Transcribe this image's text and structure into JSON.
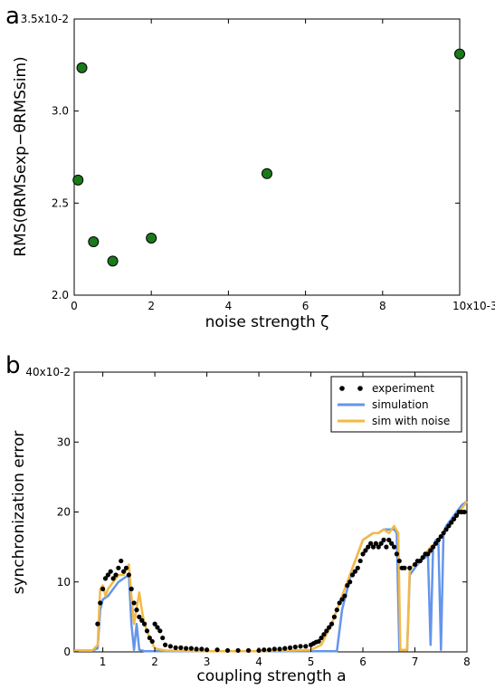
{
  "chart_data": [
    {
      "panel": "a",
      "type": "scatter",
      "title": "",
      "xlabel": "noise strength ζ",
      "ylabel": "RMS(θRMSexp−θRMSsim)",
      "xlim": [
        0,
        0.01
      ],
      "ylim": [
        0.02,
        0.035
      ],
      "x_ticks": [
        0,
        0.002,
        0.004,
        0.006,
        0.008,
        0.01
      ],
      "x_tick_labels": [
        "0",
        "2",
        "4",
        "6",
        "8",
        "10x10-3"
      ],
      "y_ticks": [
        0.02,
        0.025,
        0.03,
        0.035
      ],
      "y_tick_labels": [
        "2.0",
        "2.5",
        "3.0",
        "3.5x10-2"
      ],
      "grid": false,
      "marker_color": "#1a7a1a",
      "points": [
        {
          "x": 0.0001,
          "y": 0.02625
        },
        {
          "x": 0.0002,
          "y": 0.03235
        },
        {
          "x": 0.0005,
          "y": 0.0229
        },
        {
          "x": 0.001,
          "y": 0.02185
        },
        {
          "x": 0.002,
          "y": 0.0231
        },
        {
          "x": 0.005,
          "y": 0.0266
        },
        {
          "x": 0.01,
          "y": 0.0331
        }
      ]
    },
    {
      "panel": "b",
      "type": "line",
      "title": "",
      "xlabel": "coupling strength a",
      "ylabel": "synchronization error",
      "xlim": [
        0.45,
        8
      ],
      "ylim": [
        0,
        0.4
      ],
      "x_ticks": [
        1,
        2,
        3,
        4,
        5,
        6,
        7,
        8
      ],
      "x_tick_labels": [
        "1",
        "2",
        "3",
        "4",
        "5",
        "6",
        "7",
        "8"
      ],
      "y_ticks": [
        0,
        0.1,
        0.2,
        0.3,
        0.4
      ],
      "y_tick_labels": [
        "0",
        "10",
        "20",
        "30",
        "40x10-2"
      ],
      "grid": false,
      "legend_position": "top-right",
      "legend": [
        {
          "label": "experiment",
          "style": "dots",
          "color": "#000000"
        },
        {
          "label": "simulation",
          "style": "line",
          "color": "#6495ed"
        },
        {
          "label": "sim with noise",
          "style": "line",
          "color": "#f5b942"
        }
      ],
      "series": [
        {
          "key": "experiment",
          "type": "scatter",
          "color": "#000000",
          "points": [
            [
              0.9,
              0.04
            ],
            [
              0.95,
              0.07
            ],
            [
              1.0,
              0.09
            ],
            [
              1.05,
              0.105
            ],
            [
              1.1,
              0.11
            ],
            [
              1.15,
              0.115
            ],
            [
              1.2,
              0.105
            ],
            [
              1.25,
              0.11
            ],
            [
              1.3,
              0.12
            ],
            [
              1.35,
              0.13
            ],
            [
              1.4,
              0.115
            ],
            [
              1.45,
              0.12
            ],
            [
              1.5,
              0.11
            ],
            [
              1.55,
              0.09
            ],
            [
              1.6,
              0.07
            ],
            [
              1.65,
              0.06
            ],
            [
              1.7,
              0.05
            ],
            [
              1.75,
              0.045
            ],
            [
              1.8,
              0.04
            ],
            [
              1.85,
              0.03
            ],
            [
              1.9,
              0.02
            ],
            [
              1.95,
              0.015
            ],
            [
              2.0,
              0.04
            ],
            [
              2.05,
              0.035
            ],
            [
              2.1,
              0.03
            ],
            [
              2.15,
              0.02
            ],
            [
              2.2,
              0.01
            ],
            [
              2.3,
              0.008
            ],
            [
              2.4,
              0.006
            ],
            [
              2.5,
              0.006
            ],
            [
              2.6,
              0.005
            ],
            [
              2.7,
              0.005
            ],
            [
              2.8,
              0.004
            ],
            [
              2.9,
              0.004
            ],
            [
              3.0,
              0.003
            ],
            [
              3.2,
              0.003
            ],
            [
              3.4,
              0.002
            ],
            [
              3.6,
              0.002
            ],
            [
              3.8,
              0.002
            ],
            [
              4.0,
              0.002
            ],
            [
              4.1,
              0.003
            ],
            [
              4.2,
              0.003
            ],
            [
              4.3,
              0.004
            ],
            [
              4.4,
              0.004
            ],
            [
              4.5,
              0.005
            ],
            [
              4.6,
              0.006
            ],
            [
              4.7,
              0.007
            ],
            [
              4.8,
              0.008
            ],
            [
              4.9,
              0.008
            ],
            [
              5.0,
              0.01
            ],
            [
              5.05,
              0.012
            ],
            [
              5.1,
              0.014
            ],
            [
              5.15,
              0.015
            ],
            [
              5.2,
              0.02
            ],
            [
              5.25,
              0.025
            ],
            [
              5.3,
              0.03
            ],
            [
              5.35,
              0.035
            ],
            [
              5.4,
              0.04
            ],
            [
              5.45,
              0.05
            ],
            [
              5.5,
              0.06
            ],
            [
              5.55,
              0.07
            ],
            [
              5.6,
              0.075
            ],
            [
              5.65,
              0.08
            ],
            [
              5.7,
              0.095
            ],
            [
              5.75,
              0.1
            ],
            [
              5.8,
              0.11
            ],
            [
              5.85,
              0.115
            ],
            [
              5.9,
              0.12
            ],
            [
              5.95,
              0.13
            ],
            [
              6.0,
              0.14
            ],
            [
              6.05,
              0.145
            ],
            [
              6.1,
              0.15
            ],
            [
              6.15,
              0.155
            ],
            [
              6.2,
              0.15
            ],
            [
              6.25,
              0.155
            ],
            [
              6.3,
              0.15
            ],
            [
              6.35,
              0.155
            ],
            [
              6.4,
              0.16
            ],
            [
              6.45,
              0.15
            ],
            [
              6.5,
              0.16
            ],
            [
              6.55,
              0.155
            ],
            [
              6.6,
              0.15
            ],
            [
              6.65,
              0.14
            ],
            [
              6.7,
              0.13
            ],
            [
              6.75,
              0.12
            ],
            [
              6.8,
              0.12
            ],
            [
              6.9,
              0.12
            ],
            [
              7.0,
              0.125
            ],
            [
              7.05,
              0.13
            ],
            [
              7.1,
              0.13
            ],
            [
              7.15,
              0.135
            ],
            [
              7.2,
              0.14
            ],
            [
              7.25,
              0.14
            ],
            [
              7.3,
              0.145
            ],
            [
              7.35,
              0.15
            ],
            [
              7.4,
              0.155
            ],
            [
              7.45,
              0.16
            ],
            [
              7.5,
              0.165
            ],
            [
              7.55,
              0.17
            ],
            [
              7.6,
              0.175
            ],
            [
              7.65,
              0.18
            ],
            [
              7.7,
              0.185
            ],
            [
              7.75,
              0.19
            ],
            [
              7.8,
              0.195
            ],
            [
              7.85,
              0.2
            ],
            [
              7.9,
              0.2
            ],
            [
              7.95,
              0.2
            ]
          ]
        },
        {
          "key": "simulation",
          "type": "line",
          "color": "#6495ed",
          "points": [
            [
              0.45,
              0.002
            ],
            [
              0.8,
              0.002
            ],
            [
              0.9,
              0.005
            ],
            [
              0.95,
              0.06
            ],
            [
              1.0,
              0.075
            ],
            [
              1.1,
              0.08
            ],
            [
              1.2,
              0.09
            ],
            [
              1.3,
              0.1
            ],
            [
              1.4,
              0.105
            ],
            [
              1.5,
              0.11
            ],
            [
              1.55,
              0.04
            ],
            [
              1.6,
              0.003
            ],
            [
              1.65,
              0.04
            ],
            [
              1.7,
              0.003
            ],
            [
              1.8,
              0.001
            ],
            [
              2.0,
              0.001
            ],
            [
              3.0,
              0.001
            ],
            [
              4.0,
              0.001
            ],
            [
              5.0,
              0.001
            ],
            [
              5.5,
              0.001
            ],
            [
              5.6,
              0.06
            ],
            [
              5.7,
              0.09
            ],
            [
              5.8,
              0.12
            ],
            [
              5.9,
              0.14
            ],
            [
              6.0,
              0.16
            ],
            [
              6.1,
              0.165
            ],
            [
              6.2,
              0.17
            ],
            [
              6.3,
              0.17
            ],
            [
              6.4,
              0.175
            ],
            [
              6.5,
              0.175
            ],
            [
              6.6,
              0.175
            ],
            [
              6.65,
              0.17
            ],
            [
              6.7,
              0.002
            ],
            [
              6.85,
              0.002
            ],
            [
              6.9,
              0.11
            ],
            [
              7.0,
              0.12
            ],
            [
              7.1,
              0.13
            ],
            [
              7.2,
              0.135
            ],
            [
              7.25,
              0.14
            ],
            [
              7.3,
              0.01
            ],
            [
              7.35,
              0.15
            ],
            [
              7.4,
              0.16
            ],
            [
              7.45,
              0.16
            ],
            [
              7.5,
              0.003
            ],
            [
              7.55,
              0.17
            ],
            [
              7.6,
              0.18
            ],
            [
              7.7,
              0.19
            ],
            [
              7.8,
              0.2
            ],
            [
              7.9,
              0.21
            ],
            [
              8.0,
              0.215
            ]
          ]
        },
        {
          "key": "sim-with-noise",
          "type": "line",
          "color": "#f5b942",
          "points": [
            [
              0.45,
              0.002
            ],
            [
              0.8,
              0.002
            ],
            [
              0.9,
              0.01
            ],
            [
              0.95,
              0.09
            ],
            [
              1.0,
              0.095
            ],
            [
              1.05,
              0.08
            ],
            [
              1.1,
              0.09
            ],
            [
              1.2,
              0.1
            ],
            [
              1.3,
              0.11
            ],
            [
              1.4,
              0.11
            ],
            [
              1.5,
              0.125
            ],
            [
              1.55,
              0.08
            ],
            [
              1.6,
              0.04
            ],
            [
              1.7,
              0.085
            ],
            [
              1.75,
              0.06
            ],
            [
              1.8,
              0.04
            ],
            [
              1.9,
              0.02
            ],
            [
              2.0,
              0.005
            ],
            [
              2.2,
              0.002
            ],
            [
              3.0,
              0.001
            ],
            [
              4.0,
              0.001
            ],
            [
              5.0,
              0.003
            ],
            [
              5.2,
              0.01
            ],
            [
              5.4,
              0.04
            ],
            [
              5.6,
              0.08
            ],
            [
              5.7,
              0.1
            ],
            [
              5.8,
              0.12
            ],
            [
              5.9,
              0.14
            ],
            [
              6.0,
              0.16
            ],
            [
              6.1,
              0.165
            ],
            [
              6.2,
              0.17
            ],
            [
              6.3,
              0.17
            ],
            [
              6.4,
              0.175
            ],
            [
              6.5,
              0.17
            ],
            [
              6.6,
              0.18
            ],
            [
              6.68,
              0.17
            ],
            [
              6.72,
              0.003
            ],
            [
              6.85,
              0.003
            ],
            [
              6.9,
              0.12
            ],
            [
              7.0,
              0.125
            ],
            [
              7.1,
              0.13
            ],
            [
              7.2,
              0.14
            ],
            [
              7.3,
              0.15
            ],
            [
              7.4,
              0.155
            ],
            [
              7.5,
              0.165
            ],
            [
              7.6,
              0.175
            ],
            [
              7.7,
              0.185
            ],
            [
              7.8,
              0.195
            ],
            [
              7.9,
              0.205
            ],
            [
              8.0,
              0.215
            ]
          ]
        }
      ]
    }
  ]
}
